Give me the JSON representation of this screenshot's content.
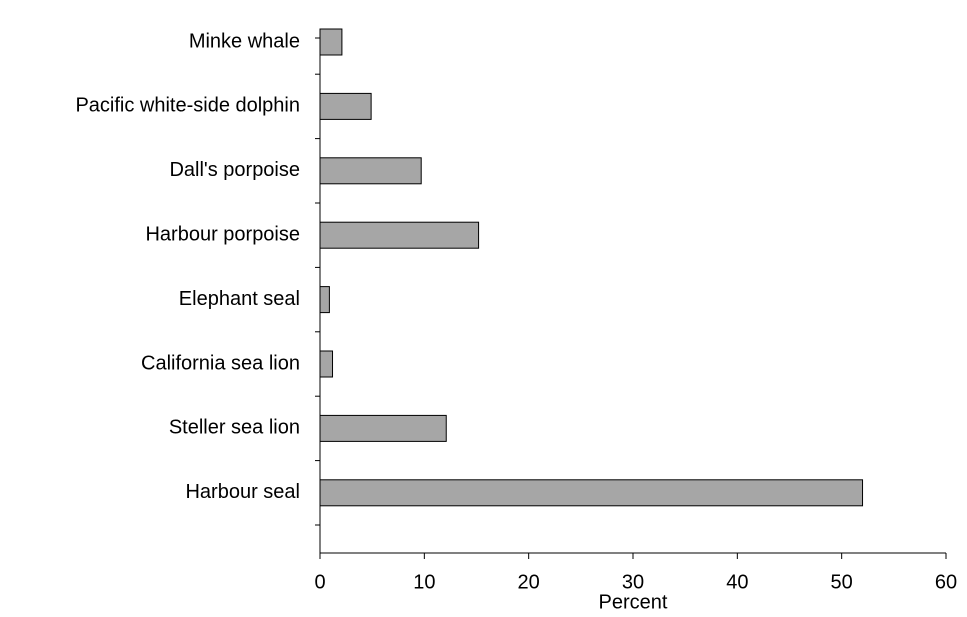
{
  "chart_data": {
    "type": "hbar",
    "x_label": "Percent",
    "categories": [
      "Minke whale",
      "Pacific white-side dolphin",
      "Dall's porpoise",
      "Harbour porpoise",
      "Elephant seal",
      "California sea lion",
      "Steller sea lion",
      "Harbour seal"
    ],
    "values": [
      2.1,
      4.9,
      9.7,
      15.2,
      0.9,
      1.2,
      12.1,
      52.0
    ],
    "color": "#a6a6a6",
    "xlim": [
      0,
      60
    ],
    "xticks": [
      0,
      10,
      20,
      30,
      40,
      50,
      60
    ],
    "grid": false
  }
}
